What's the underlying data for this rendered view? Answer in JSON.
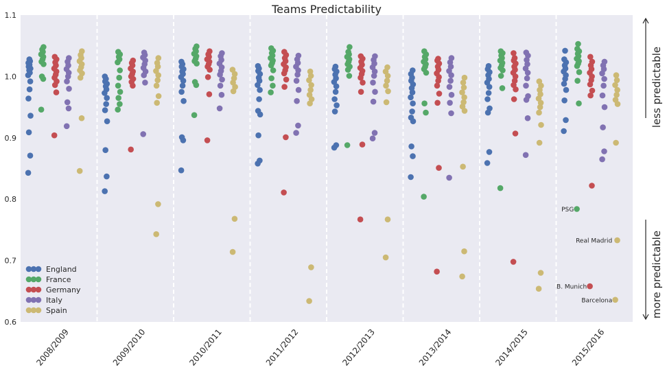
{
  "chart_data": {
    "type": "scatter",
    "title": "Teams Predictability",
    "xlabel": "",
    "ylabel": "",
    "ylim": [
      0.6,
      1.1
    ],
    "y_ticks": [
      "0.6",
      "0.7",
      "0.8",
      "0.9",
      "1.0",
      "1.1"
    ],
    "categories": [
      "2008/2009",
      "2009/2010",
      "2010/2011",
      "2011/2012",
      "2012/2013",
      "2013/2014",
      "2014/2015",
      "2015/2016"
    ],
    "grid": true,
    "legend_position": "lower-left",
    "series": [
      {
        "name": "England",
        "color": "#4c72b0",
        "values": [
          [
            0.843,
            0.871,
            0.909,
            0.936,
            0.964,
            0.979,
            0.992,
            1.002,
            1.006,
            1.01,
            1.013,
            1.016,
            1.019,
            1.022,
            1.025,
            1.028
          ],
          [
            0.813,
            0.837,
            0.88,
            0.927,
            0.945,
            0.955,
            0.965,
            0.973,
            0.979,
            0.984,
            0.988,
            0.992,
            0.996,
            1.0
          ],
          [
            0.847,
            0.896,
            0.901,
            0.96,
            0.975,
            0.985,
            0.993,
            0.999,
            1.004,
            1.008,
            1.012,
            1.016,
            1.02,
            1.024
          ],
          [
            0.858,
            0.863,
            0.904,
            0.938,
            0.944,
            0.963,
            0.978,
            0.986,
            0.993,
            0.998,
            1.004,
            1.009,
            1.013,
            1.017
          ],
          [
            0.884,
            0.888,
            0.943,
            0.953,
            0.963,
            0.975,
            0.984,
            0.991,
            0.997,
            1.003,
            1.008,
            1.012,
            1.016
          ],
          [
            0.836,
            0.87,
            0.886,
            0.927,
            0.933,
            0.943,
            0.956,
            0.966,
            0.974,
            0.981,
            0.987,
            0.993,
            0.998,
            1.004,
            1.01
          ],
          [
            0.859,
            0.877,
            0.941,
            0.948,
            0.963,
            0.973,
            0.983,
            0.99,
            0.996,
            1.002,
            1.007,
            1.012,
            1.017
          ],
          [
            0.911,
            0.929,
            0.961,
            0.978,
            0.988,
            0.996,
            1.002,
            1.008,
            1.013,
            1.018,
            1.023,
            1.028,
            1.042
          ]
        ]
      },
      {
        "name": "France",
        "color": "#55a868",
        "values": [
          [
            0.946,
            0.996,
            1.0,
            1.02,
            1.024,
            1.028,
            1.032,
            1.036,
            1.04,
            1.044,
            1.048
          ],
          [
            0.946,
            0.955,
            0.965,
            0.975,
            0.985,
            0.998,
            1.01,
            1.023,
            1.028,
            1.032,
            1.036,
            1.04
          ],
          [
            0.937,
            0.986,
            0.991,
            1.021,
            1.025,
            1.029,
            1.033,
            1.037,
            1.041,
            1.045,
            1.049
          ],
          [
            0.974,
            0.985,
            0.997,
            1.01,
            1.018,
            1.022,
            1.026,
            1.03,
            1.034,
            1.038,
            1.042,
            1.046
          ],
          [
            0.888,
            1.001,
            1.011,
            1.016,
            1.02,
            1.024,
            1.028,
            1.032,
            1.036,
            1.04,
            1.048
          ],
          [
            0.804,
            0.941,
            0.956,
            1.006,
            1.012,
            1.016,
            1.02,
            1.024,
            1.028,
            1.032,
            1.036,
            1.041
          ],
          [
            0.818,
            0.981,
            1.001,
            1.01,
            1.014,
            1.018,
            1.022,
            1.026,
            1.03,
            1.034,
            1.038,
            1.041
          ],
          [
            0.784,
            0.956,
            0.993,
            1.007,
            1.017,
            1.021,
            1.025,
            1.029,
            1.033,
            1.037,
            1.041,
            1.045,
            1.053
          ]
        ]
      },
      {
        "name": "Germany",
        "color": "#c44e52",
        "values": [
          [
            0.904,
            0.974,
            0.986,
            0.992,
            0.998,
            1.003,
            1.008,
            1.013,
            1.018,
            1.023,
            1.028,
            1.032
          ],
          [
            0.881,
            0.985,
            0.991,
            0.996,
            1.0,
            1.004,
            1.008,
            1.013,
            1.018,
            1.022,
            1.026
          ],
          [
            0.896,
            0.971,
            0.999,
            1.011,
            1.016,
            1.02,
            1.024,
            1.028,
            1.032,
            1.036,
            1.041
          ],
          [
            0.811,
            0.901,
            0.983,
            0.995,
            1.005,
            1.01,
            1.015,
            1.02,
            1.025,
            1.03,
            1.035,
            1.04
          ],
          [
            0.767,
            0.889,
            0.975,
            0.99,
            0.998,
            1.004,
            1.009,
            1.014,
            1.019,
            1.024,
            1.029,
            1.033
          ],
          [
            0.682,
            0.851,
            0.957,
            0.972,
            0.985,
            0.993,
            0.999,
            1.005,
            1.011,
            1.016,
            1.021,
            1.026,
            1.029
          ],
          [
            0.698,
            0.907,
            0.963,
            0.979,
            0.986,
            0.993,
            1.0,
            1.006,
            1.011,
            1.016,
            1.021,
            1.026,
            1.03,
            1.038
          ],
          [
            0.658,
            0.822,
            0.969,
            0.977,
            0.987,
            0.994,
            1.0,
            1.006,
            1.012,
            1.018,
            1.024,
            1.032
          ]
        ]
      },
      {
        "name": "Italy",
        "color": "#8172b2",
        "values": [
          [
            0.919,
            0.948,
            0.958,
            0.98,
            0.992,
            1.0,
            1.006,
            1.012,
            1.018,
            1.024,
            1.03
          ],
          [
            0.906,
            0.99,
            1.002,
            1.008,
            1.014,
            1.02,
            1.026,
            1.031,
            1.035,
            1.039
          ],
          [
            0.948,
            0.97,
            0.985,
            0.995,
            1.003,
            1.009,
            1.015,
            1.021,
            1.027,
            1.033,
            1.038
          ],
          [
            0.908,
            0.92,
            0.96,
            0.978,
            0.993,
            1.003,
            1.01,
            1.016,
            1.022,
            1.028,
            1.034
          ],
          [
            0.899,
            0.908,
            0.959,
            0.975,
            0.99,
            1.001,
            1.008,
            1.015,
            1.021,
            1.027,
            1.033
          ],
          [
            0.835,
            0.94,
            0.957,
            0.97,
            0.983,
            0.993,
            1.002,
            1.009,
            1.016,
            1.023,
            1.03
          ],
          [
            0.872,
            0.932,
            0.962,
            0.968,
            0.985,
            0.997,
            1.006,
            1.013,
            1.02,
            1.027,
            1.034,
            1.039
          ],
          [
            0.865,
            0.878,
            0.917,
            0.95,
            0.969,
            0.985,
            0.996,
            1.005,
            1.012,
            1.018,
            1.024
          ]
        ]
      },
      {
        "name": "Spain",
        "color": "#ccb974",
        "values": [
          [
            0.846,
            0.932,
            0.998,
            1.005,
            1.01,
            1.015,
            1.02,
            1.025,
            1.03,
            1.035,
            1.041
          ],
          [
            0.743,
            0.792,
            0.957,
            0.968,
            0.985,
            0.994,
            1.002,
            1.009,
            1.016,
            1.022,
            1.03
          ],
          [
            0.714,
            0.768,
            0.976,
            0.983,
            0.99,
            0.997,
            1.004,
            1.011
          ],
          [
            0.634,
            0.689,
            0.956,
            0.963,
            0.97,
            0.978,
            0.986,
            0.994,
            1.001,
            1.008
          ],
          [
            0.705,
            0.767,
            0.958,
            0.976,
            0.985,
            0.993,
            1.001,
            1.008,
            1.015
          ],
          [
            0.674,
            0.715,
            0.853,
            0.944,
            0.951,
            0.958,
            0.966,
            0.974,
            0.982,
            0.99,
            0.998
          ],
          [
            0.654,
            0.68,
            0.892,
            0.921,
            0.941,
            0.95,
            0.957,
            0.964,
            0.971,
            0.978,
            0.985,
            0.992
          ],
          [
            0.636,
            0.733,
            0.892,
            0.955,
            0.962,
            0.97,
            0.978,
            0.986,
            0.994,
            1.002
          ]
        ]
      }
    ],
    "annotations": [
      {
        "label": "PSG",
        "category": "2015/2016",
        "series": "France",
        "y": 0.784
      },
      {
        "label": "Real Madrid",
        "category": "2015/2016",
        "series": "Spain",
        "y": 0.733
      },
      {
        "label": "B. Munich",
        "category": "2015/2016",
        "series": "Germany",
        "y": 0.658
      },
      {
        "label": "Barcelona",
        "category": "2015/2016",
        "series": "Spain",
        "y": 0.636
      }
    ],
    "side_labels": {
      "top": "less predictable",
      "bottom": "more predictable"
    },
    "colors": {
      "plot_background": "#eaeaf2",
      "separator": "#ffffff",
      "axis_text": "#262626"
    }
  }
}
